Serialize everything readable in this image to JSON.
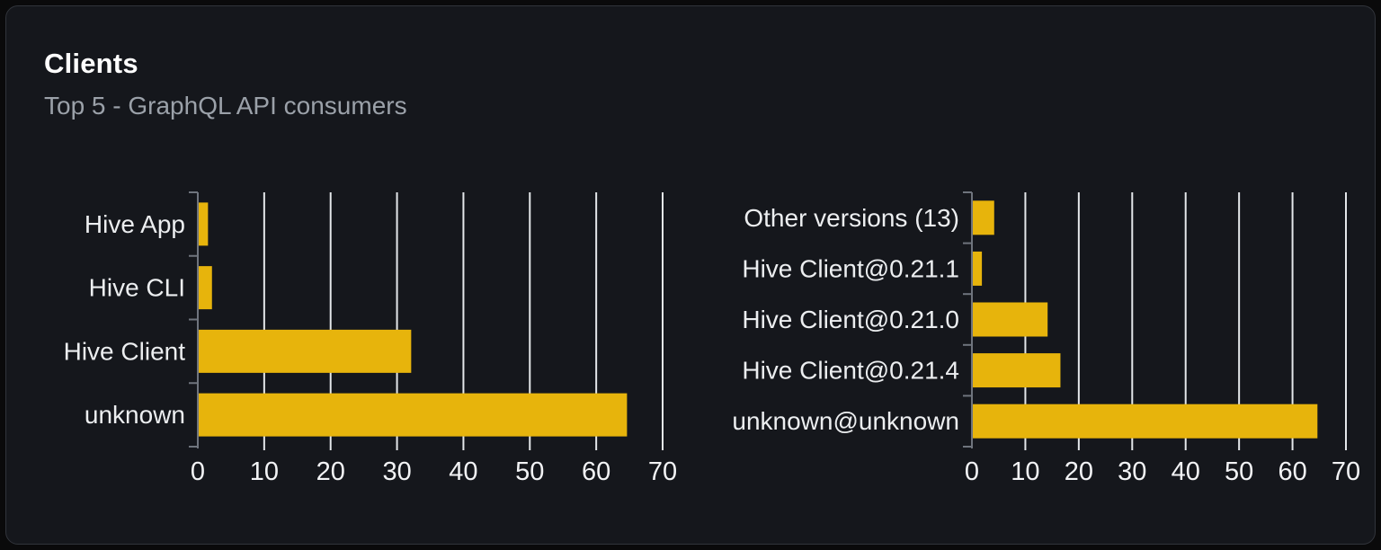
{
  "card": {
    "title": "Clients",
    "subtitle": "Top 5 - GraphQL API consumers"
  },
  "colors": {
    "page_bg": "#0a0a0b",
    "card_bg": "#15171c",
    "card_border": "#31343b",
    "title": "#ffffff",
    "subtitle": "#9ba1a9",
    "bar": "#e7b40c",
    "grid": "#e4e7ea",
    "axis": "#6f747d",
    "category_label": "#eceef0",
    "tick_label": "#f2f3f5"
  },
  "chart_data": [
    {
      "type": "bar",
      "orientation": "horizontal",
      "categories": [
        "Hive App",
        "Hive CLI",
        "Hive Client",
        "unknown"
      ],
      "values": [
        1.4,
        2,
        32,
        64.5
      ],
      "xlim": [
        0,
        70
      ],
      "xticks": [
        0,
        10,
        20,
        30,
        40,
        50,
        60,
        70
      ],
      "grid": "vertical",
      "legend": "none"
    },
    {
      "type": "bar",
      "orientation": "horizontal",
      "categories": [
        "Other versions (13)",
        "Hive Client@0.21.1",
        "Hive Client@0.21.0",
        "Hive Client@0.21.4",
        "unknown@unknown"
      ],
      "values": [
        4,
        1.7,
        14,
        16.4,
        64.5
      ],
      "xlim": [
        0,
        70
      ],
      "xticks": [
        0,
        10,
        20,
        30,
        40,
        50,
        60,
        70
      ],
      "grid": "vertical",
      "legend": "none"
    }
  ]
}
